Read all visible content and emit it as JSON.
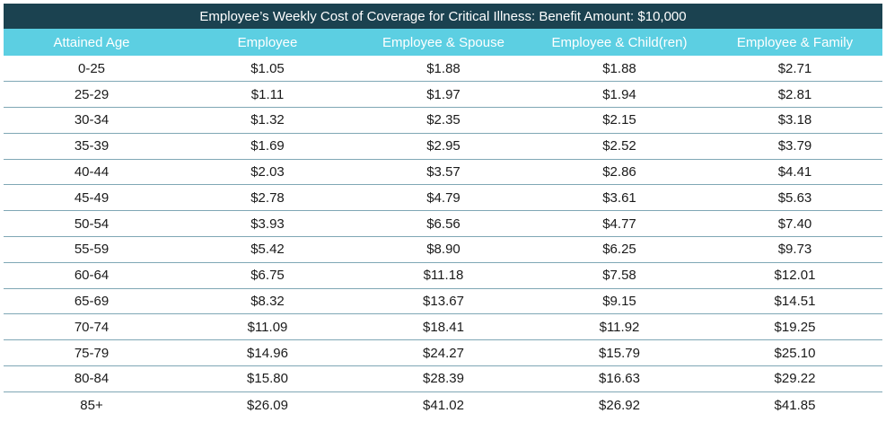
{
  "title": "Employee’s Weekly Cost of Coverage for Critical Illness: Benefit Amount: $10,000",
  "colors": {
    "title_bg": "#1b4250",
    "header_bg": "#5ccfe2",
    "row_divider": "#7fa7b5"
  },
  "table": {
    "headers": [
      "Attained Age",
      "Employee",
      "Employee & Spouse",
      "Employee & Child(ren)",
      "Employee & Family"
    ],
    "rows": [
      [
        "0-25",
        "$1.05",
        "$1.88",
        "$1.88",
        "$2.71"
      ],
      [
        "25-29",
        "$1.11",
        "$1.97",
        "$1.94",
        "$2.81"
      ],
      [
        "30-34",
        "$1.32",
        "$2.35",
        "$2.15",
        "$3.18"
      ],
      [
        "35-39",
        "$1.69",
        "$2.95",
        "$2.52",
        "$3.79"
      ],
      [
        "40-44",
        "$2.03",
        "$3.57",
        "$2.86",
        "$4.41"
      ],
      [
        "45-49",
        "$2.78",
        "$4.79",
        "$3.61",
        "$5.63"
      ],
      [
        "50-54",
        "$3.93",
        "$6.56",
        "$4.77",
        "$7.40"
      ],
      [
        "55-59",
        "$5.42",
        "$8.90",
        "$6.25",
        "$9.73"
      ],
      [
        "60-64",
        "$6.75",
        "$11.18",
        "$7.58",
        "$12.01"
      ],
      [
        "65-69",
        "$8.32",
        "$13.67",
        "$9.15",
        "$14.51"
      ],
      [
        "70-74",
        "$11.09",
        "$18.41",
        "$11.92",
        "$19.25"
      ],
      [
        "75-79",
        "$14.96",
        "$24.27",
        "$15.79",
        "$25.10"
      ],
      [
        "80-84",
        "$15.80",
        "$28.39",
        "$16.63",
        "$29.22"
      ],
      [
        "85+",
        "$26.09",
        "$41.02",
        "$26.92",
        "$41.85"
      ]
    ]
  }
}
